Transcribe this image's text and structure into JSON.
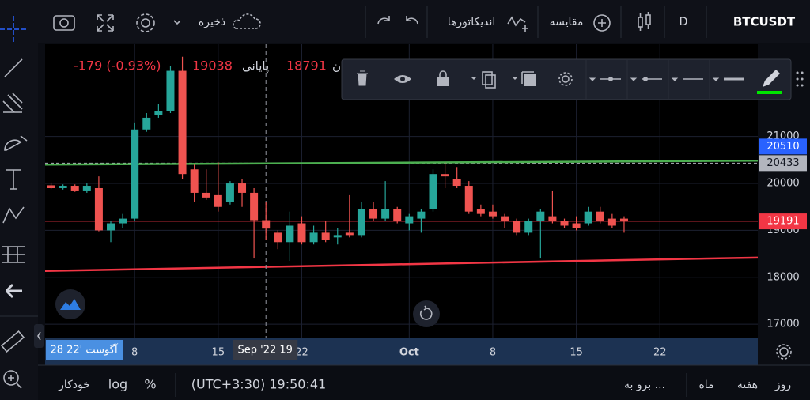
{
  "toolbar": {
    "symbol": "BTCUSDT",
    "interval": "D",
    "compare": "مقایسه",
    "indicators": "اندیکاتورها",
    "save": "ذخیره"
  },
  "ohlc_legend": {
    "change": "-179 (-0.93%)",
    "close_value": 19038,
    "close_label": "پایانی",
    "low_value": 18791,
    "low_label": "ن"
  },
  "chart_data": {
    "type": "candlestick",
    "x": [
      1,
      2,
      3,
      4,
      5,
      6,
      7,
      8,
      9,
      10,
      11,
      12,
      13,
      14,
      15,
      16,
      17,
      18,
      19,
      20,
      21,
      22,
      23,
      24,
      25,
      26,
      27,
      28,
      29,
      30,
      31,
      32,
      33,
      34,
      35,
      36,
      37,
      38,
      39,
      40,
      41,
      42,
      43,
      44,
      45,
      46,
      47,
      48,
      49
    ],
    "open": [
      19960,
      19900,
      19950,
      19850,
      19900,
      19000,
      19150,
      19250,
      21150,
      21450,
      21550,
      22400,
      20300,
      19800,
      19750,
      19600,
      20000,
      19800,
      19217,
      18950,
      18750,
      19150,
      18750,
      18950,
      18850,
      18950,
      18900,
      19450,
      19250,
      19450,
      19150,
      19250,
      19450,
      20200,
      20100,
      19950,
      19450,
      19400,
      19300,
      19200,
      18950,
      19200,
      19300,
      19200,
      19150,
      19150,
      19400,
      19250,
      19250
    ],
    "high": [
      20020,
      19980,
      19980,
      20000,
      20150,
      19200,
      19350,
      21300,
      21500,
      21700,
      22500,
      22700,
      20400,
      20300,
      20450,
      20050,
      20100,
      19900,
      19600,
      19000,
      19400,
      19300,
      19100,
      19200,
      19050,
      19750,
      19600,
      19600,
      20050,
      19500,
      19350,
      19450,
      20300,
      20450,
      20350,
      20050,
      19550,
      19550,
      19350,
      19250,
      19250,
      19450,
      19850,
      19250,
      19300,
      19500,
      19500,
      19350,
      19300
    ],
    "low": [
      19880,
      19870,
      19820,
      19800,
      18980,
      18750,
      19050,
      19200,
      21100,
      21400,
      21500,
      20100,
      19600,
      19650,
      19400,
      19550,
      19500,
      18400,
      18791,
      18600,
      18350,
      18700,
      18700,
      18750,
      18700,
      18850,
      18850,
      19200,
      19200,
      19150,
      19000,
      18950,
      19400,
      19900,
      19900,
      19350,
      19300,
      19250,
      19050,
      18900,
      18900,
      18400,
      19150,
      19050,
      19000,
      19100,
      19150,
      19050,
      18950
    ],
    "close": [
      19900,
      19950,
      19850,
      19950,
      19000,
      19150,
      19250,
      21150,
      21400,
      21550,
      22400,
      20200,
      19800,
      19700,
      19500,
      20000,
      19800,
      19217,
      19038,
      18750,
      19100,
      18750,
      18950,
      18800,
      18900,
      18900,
      19450,
      19250,
      19450,
      19200,
      19300,
      19400,
      20200,
      20150,
      19950,
      19400,
      19350,
      19300,
      19200,
      18950,
      19200,
      19400,
      19200,
      19100,
      19050,
      19400,
      19200,
      19100,
      19191
    ],
    "up_color": "#26a69a",
    "down_color": "#ef5350",
    "xlim": [
      0.5,
      60.2
    ],
    "ylim": [
      16700,
      22965
    ],
    "xticks": [
      8,
      15,
      22,
      {
        "value": 31,
        "label": "Oct"
      },
      {
        "value": 38,
        "label": "8"
      },
      {
        "value": 45,
        "label": "15"
      },
      {
        "value": 52,
        "label": "22"
      }
    ],
    "yticks": [
      17000,
      18000,
      19000,
      20000,
      21000
    ],
    "grid": true,
    "trend_lines": [
      {
        "color": "#4caf50",
        "x": [
          0.5,
          60.2
        ],
        "y": [
          20400,
          20485
        ]
      },
      {
        "color": "#f23645",
        "x": [
          0.5,
          60.2
        ],
        "y": [
          18135,
          18420
        ]
      }
    ],
    "price_labels": [
      {
        "value": 20510,
        "color": "#2962ff",
        "line": "none"
      },
      {
        "value": 20433,
        "color": "#b2b5be",
        "line": "dashed"
      },
      {
        "value": 19191,
        "color": "#f23645",
        "line": "solid"
      }
    ],
    "crosshair": {
      "x": 19,
      "label": "Sep '22 19"
    },
    "scroll_label": "28 آگوست '22"
  },
  "bottom_bar": {
    "auto": "خودکار",
    "log": "log",
    "percent": "%",
    "timezone": "(UTC+3:30) 19:50:41",
    "goto": "برو به ...",
    "month": "ماه",
    "week": "هفته",
    "day": "روز"
  }
}
